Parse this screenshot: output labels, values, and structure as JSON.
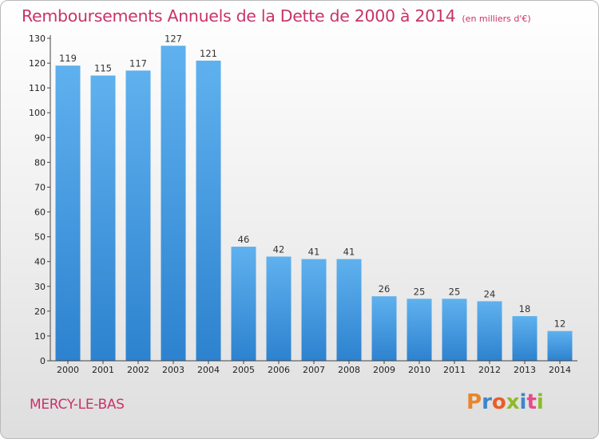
{
  "chart_data": {
    "type": "bar",
    "title": "Remboursements Annuels de la Dette de 2000 à 2014",
    "subtitle": "(en milliers d'€)",
    "categories": [
      "2000",
      "2001",
      "2002",
      "2003",
      "2004",
      "2005",
      "2006",
      "2007",
      "2008",
      "2009",
      "2010",
      "2011",
      "2012",
      "2013",
      "2014"
    ],
    "values": [
      119,
      115,
      117,
      127,
      121,
      46,
      42,
      41,
      41,
      26,
      25,
      25,
      24,
      18,
      12
    ],
    "xlabel": "",
    "ylabel": "",
    "ylim": [
      0,
      130
    ],
    "yticks": [
      0,
      10,
      20,
      30,
      40,
      50,
      60,
      70,
      80,
      90,
      100,
      110,
      120,
      130
    ],
    "grid": false,
    "bar_color": "#4a9fe0"
  },
  "footer": {
    "commune": "MERCY-LE-BAS",
    "brand": "Proxiti",
    "brand_colors": [
      "#e8862a",
      "#3d86c8",
      "#ea5d27",
      "#8dbb2a",
      "#3d86c8",
      "#e84a8b",
      "#8dbb2a"
    ]
  },
  "colors": {
    "title": "#c8336a",
    "axis": "#444444"
  }
}
